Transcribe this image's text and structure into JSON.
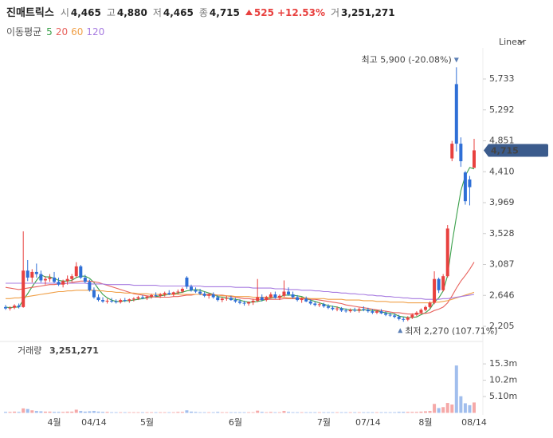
{
  "header": {
    "name": "진매트릭스",
    "items": [
      {
        "label": "시",
        "value": "4,465"
      },
      {
        "label": "고",
        "value": "4,880"
      },
      {
        "label": "저",
        "value": "4,465"
      },
      {
        "label": "종",
        "value": "4,715"
      }
    ],
    "change": "525",
    "change_pct": "+12.53%",
    "volume_label": "거",
    "volume_value": "3,251,271"
  },
  "chart_data": {
    "type": "candlestick",
    "ma_title": "이동평균",
    "scale_mode": "Linear",
    "up_color": "#e8413f",
    "down_color": "#2f6fd6",
    "annotations": {
      "high": "최고 5,900 (-20.08%)",
      "low": "최저 2,270 (107.71%)"
    },
    "ylim": [
      2080,
      6120
    ],
    "yticks": [
      {
        "value": 2205,
        "label": "2,205"
      },
      {
        "value": 2646,
        "label": "2,646"
      },
      {
        "value": 3087,
        "label": "3,087"
      },
      {
        "value": 3528,
        "label": "3,528"
      },
      {
        "value": 3969,
        "label": "3,969"
      },
      {
        "value": 4410,
        "label": "4,410"
      },
      {
        "value": 4851,
        "label": "4,851"
      },
      {
        "value": 5292,
        "label": "5,292"
      },
      {
        "value": 5733,
        "label": "5,733"
      }
    ],
    "categories": [
      null,
      null,
      null,
      null,
      null,
      null,
      null,
      null,
      null,
      null,
      null,
      "4월",
      null,
      null,
      null,
      null,
      null,
      null,
      null,
      null,
      "04/14",
      null,
      null,
      null,
      null,
      null,
      null,
      null,
      null,
      null,
      null,
      null,
      "5월",
      null,
      null,
      null,
      null,
      null,
      null,
      null,
      null,
      null,
      null,
      null,
      null,
      null,
      null,
      null,
      null,
      null,
      null,
      null,
      "6월",
      null,
      null,
      null,
      null,
      null,
      null,
      null,
      null,
      null,
      null,
      null,
      null,
      null,
      null,
      null,
      null,
      null,
      null,
      null,
      "7월",
      null,
      null,
      null,
      null,
      null,
      null,
      null,
      null,
      null,
      "07/14",
      null,
      null,
      null,
      null,
      null,
      null,
      null,
      null,
      null,
      null,
      null,
      null,
      "8월",
      null,
      null,
      null,
      null,
      null,
      null,
      null,
      null,
      null,
      null,
      "08/14"
    ],
    "ohlc": [
      [
        2480,
        2510,
        2440,
        2460
      ],
      [
        2460,
        2490,
        2430,
        2470
      ],
      [
        2470,
        2520,
        2450,
        2500
      ],
      [
        2500,
        2530,
        2460,
        2480
      ],
      [
        2480,
        3560,
        2470,
        3000
      ],
      [
        3000,
        3150,
        2850,
        2900
      ],
      [
        2900,
        3020,
        2830,
        2980
      ],
      [
        2980,
        3100,
        2900,
        2950
      ],
      [
        2950,
        3000,
        2830,
        2860
      ],
      [
        2860,
        2920,
        2800,
        2880
      ],
      [
        2880,
        2950,
        2840,
        2900
      ],
      [
        2900,
        2980,
        2820,
        2840
      ],
      [
        2840,
        2900,
        2780,
        2800
      ],
      [
        2800,
        2870,
        2760,
        2850
      ],
      [
        2850,
        2930,
        2800,
        2880
      ],
      [
        2880,
        2950,
        2840,
        2920
      ],
      [
        2920,
        3120,
        2900,
        3060
      ],
      [
        3060,
        3080,
        2880,
        2900
      ],
      [
        2900,
        2940,
        2820,
        2840
      ],
      [
        2840,
        2870,
        2700,
        2720
      ],
      [
        2720,
        2760,
        2600,
        2620
      ],
      [
        2620,
        2660,
        2560,
        2580
      ],
      [
        2580,
        2620,
        2540,
        2560
      ],
      [
        2560,
        2600,
        2530,
        2570
      ],
      [
        2570,
        2610,
        2540,
        2560
      ],
      [
        2560,
        2590,
        2530,
        2550
      ],
      [
        2550,
        2600,
        2530,
        2580
      ],
      [
        2580,
        2610,
        2550,
        2570
      ],
      [
        2570,
        2600,
        2540,
        2590
      ],
      [
        2590,
        2620,
        2560,
        2600
      ],
      [
        2600,
        2640,
        2580,
        2620
      ],
      [
        2620,
        2650,
        2590,
        2610
      ],
      [
        2610,
        2640,
        2580,
        2630
      ],
      [
        2630,
        2670,
        2600,
        2650
      ],
      [
        2650,
        2690,
        2620,
        2640
      ],
      [
        2640,
        2680,
        2610,
        2660
      ],
      [
        2660,
        2700,
        2630,
        2680
      ],
      [
        2680,
        2720,
        2650,
        2660
      ],
      [
        2660,
        2700,
        2630,
        2690
      ],
      [
        2690,
        2730,
        2660,
        2700
      ],
      [
        2700,
        2760,
        2680,
        2740
      ],
      [
        2900,
        2920,
        2740,
        2770
      ],
      [
        2770,
        2800,
        2700,
        2720
      ],
      [
        2720,
        2760,
        2680,
        2700
      ],
      [
        2700,
        2740,
        2650,
        2670
      ],
      [
        2670,
        2700,
        2620,
        2640
      ],
      [
        2640,
        2680,
        2600,
        2660
      ],
      [
        2660,
        2690,
        2600,
        2620
      ],
      [
        2620,
        2650,
        2560,
        2580
      ],
      [
        2580,
        2620,
        2550,
        2600
      ],
      [
        2600,
        2640,
        2570,
        2610
      ],
      [
        2610,
        2640,
        2570,
        2580
      ],
      [
        2580,
        2610,
        2540,
        2560
      ],
      [
        2560,
        2590,
        2520,
        2540
      ],
      [
        2540,
        2570,
        2500,
        2530
      ],
      [
        2530,
        2560,
        2500,
        2550
      ],
      [
        2550,
        2600,
        2510,
        2570
      ],
      [
        2570,
        2880,
        2550,
        2620
      ],
      [
        2620,
        2660,
        2560,
        2580
      ],
      [
        2580,
        2640,
        2560,
        2620
      ],
      [
        2620,
        2690,
        2600,
        2660
      ],
      [
        2660,
        2700,
        2600,
        2610
      ],
      [
        2610,
        2660,
        2580,
        2640
      ],
      [
        2640,
        2860,
        2620,
        2700
      ],
      [
        2700,
        2760,
        2640,
        2660
      ],
      [
        2660,
        2700,
        2600,
        2620
      ],
      [
        2620,
        2650,
        2560,
        2580
      ],
      [
        2580,
        2620,
        2540,
        2600
      ],
      [
        2600,
        2630,
        2550,
        2560
      ],
      [
        2560,
        2590,
        2510,
        2530
      ],
      [
        2530,
        2560,
        2490,
        2510
      ],
      [
        2510,
        2550,
        2480,
        2520
      ],
      [
        2520,
        2540,
        2470,
        2490
      ],
      [
        2490,
        2520,
        2450,
        2470
      ],
      [
        2470,
        2500,
        2430,
        2450
      ],
      [
        2450,
        2490,
        2420,
        2460
      ],
      [
        2460,
        2480,
        2410,
        2430
      ],
      [
        2430,
        2460,
        2400,
        2420
      ],
      [
        2420,
        2460,
        2400,
        2440
      ],
      [
        2440,
        2470,
        2410,
        2430
      ],
      [
        2430,
        2470,
        2400,
        2450
      ],
      [
        2450,
        2490,
        2420,
        2440
      ],
      [
        2440,
        2470,
        2400,
        2420
      ],
      [
        2420,
        2450,
        2380,
        2400
      ],
      [
        2400,
        2440,
        2380,
        2420
      ],
      [
        2420,
        2450,
        2380,
        2390
      ],
      [
        2390,
        2420,
        2350,
        2370
      ],
      [
        2370,
        2400,
        2340,
        2360
      ],
      [
        2360,
        2390,
        2320,
        2340
      ],
      [
        2340,
        2370,
        2290,
        2310
      ],
      [
        2310,
        2340,
        2270,
        2300
      ],
      [
        2300,
        2350,
        2280,
        2330
      ],
      [
        2330,
        2390,
        2310,
        2370
      ],
      [
        2370,
        2420,
        2350,
        2400
      ],
      [
        2400,
        2460,
        2380,
        2440
      ],
      [
        2440,
        2500,
        2420,
        2480
      ],
      [
        2480,
        2560,
        2460,
        2540
      ],
      [
        2540,
        2990,
        2520,
        2880
      ],
      [
        2880,
        2900,
        2680,
        2720
      ],
      [
        2720,
        2950,
        2700,
        2920
      ],
      [
        2920,
        3650,
        2900,
        3600
      ],
      [
        4600,
        4850,
        4560,
        4810
      ],
      [
        5660,
        5900,
        4700,
        4810
      ],
      [
        4810,
        4900,
        4480,
        4560
      ],
      [
        4400,
        4420,
        3940,
        3990
      ],
      [
        4300,
        4350,
        3930,
        4190
      ],
      [
        4465,
        4880,
        4465,
        4715
      ]
    ],
    "series": [
      {
        "name": "5",
        "color": "#3aa04a",
        "values": [
          2480,
          2470,
          2480,
          2480,
          2580,
          2670,
          2770,
          2860,
          2940,
          2910,
          2910,
          2890,
          2860,
          2850,
          2850,
          2860,
          2900,
          2920,
          2920,
          2890,
          2830,
          2740,
          2660,
          2610,
          2580,
          2560,
          2560,
          2570,
          2570,
          2580,
          2590,
          2600,
          2610,
          2620,
          2630,
          2640,
          2650,
          2660,
          2670,
          2680,
          2690,
          2710,
          2720,
          2730,
          2720,
          2700,
          2680,
          2660,
          2630,
          2620,
          2610,
          2600,
          2590,
          2580,
          2560,
          2550,
          2550,
          2560,
          2570,
          2590,
          2610,
          2620,
          2620,
          2650,
          2650,
          2650,
          2640,
          2630,
          2600,
          2580,
          2560,
          2540,
          2520,
          2500,
          2490,
          2480,
          2460,
          2450,
          2440,
          2440,
          2430,
          2440,
          2440,
          2430,
          2430,
          2410,
          2400,
          2390,
          2380,
          2350,
          2340,
          2330,
          2330,
          2340,
          2370,
          2400,
          2450,
          2550,
          2610,
          2710,
          2930,
          3390,
          3770,
          4140,
          4350,
          4470,
          4450
        ]
      },
      {
        "name": "20",
        "color": "#e8615c",
        "values": [
          2760,
          2750,
          2740,
          2730,
          2740,
          2750,
          2760,
          2770,
          2780,
          2790,
          2800,
          2800,
          2810,
          2810,
          2820,
          2830,
          2840,
          2850,
          2850,
          2850,
          2840,
          2830,
          2810,
          2790,
          2770,
          2750,
          2730,
          2710,
          2690,
          2670,
          2660,
          2650,
          2640,
          2630,
          2620,
          2620,
          2620,
          2620,
          2630,
          2630,
          2640,
          2650,
          2650,
          2660,
          2660,
          2660,
          2660,
          2660,
          2650,
          2650,
          2640,
          2630,
          2620,
          2610,
          2600,
          2600,
          2590,
          2590,
          2590,
          2590,
          2590,
          2590,
          2590,
          2600,
          2600,
          2600,
          2600,
          2600,
          2600,
          2590,
          2590,
          2580,
          2570,
          2560,
          2550,
          2540,
          2530,
          2510,
          2500,
          2490,
          2480,
          2470,
          2460,
          2450,
          2440,
          2430,
          2420,
          2410,
          2400,
          2400,
          2390,
          2380,
          2380,
          2380,
          2390,
          2390,
          2400,
          2430,
          2450,
          2480,
          2540,
          2640,
          2750,
          2850,
          2930,
          3020,
          3120
        ]
      },
      {
        "name": "60",
        "color": "#f0a048",
        "values": [
          2600,
          2600,
          2610,
          2610,
          2620,
          2630,
          2640,
          2650,
          2660,
          2670,
          2680,
          2690,
          2700,
          2700,
          2710,
          2710,
          2720,
          2720,
          2720,
          2720,
          2720,
          2710,
          2710,
          2700,
          2700,
          2690,
          2690,
          2680,
          2680,
          2680,
          2670,
          2670,
          2670,
          2660,
          2660,
          2660,
          2660,
          2660,
          2660,
          2660,
          2660,
          2660,
          2660,
          2660,
          2660,
          2650,
          2650,
          2650,
          2650,
          2640,
          2640,
          2640,
          2630,
          2630,
          2630,
          2630,
          2620,
          2620,
          2620,
          2620,
          2620,
          2620,
          2620,
          2620,
          2610,
          2610,
          2610,
          2610,
          2610,
          2600,
          2600,
          2600,
          2600,
          2590,
          2590,
          2590,
          2590,
          2580,
          2580,
          2580,
          2580,
          2570,
          2570,
          2570,
          2560,
          2560,
          2560,
          2550,
          2550,
          2550,
          2550,
          2540,
          2540,
          2540,
          2540,
          2540,
          2540,
          2550,
          2550,
          2560,
          2570,
          2590,
          2610,
          2630,
          2650,
          2670,
          2690
        ]
      },
      {
        "name": "120",
        "color": "#a77be0",
        "values": [
          2820,
          2820,
          2820,
          2820,
          2820,
          2820,
          2820,
          2820,
          2820,
          2820,
          2820,
          2820,
          2820,
          2820,
          2820,
          2820,
          2820,
          2820,
          2820,
          2810,
          2810,
          2810,
          2810,
          2800,
          2800,
          2800,
          2800,
          2800,
          2800,
          2790,
          2790,
          2790,
          2790,
          2790,
          2790,
          2780,
          2780,
          2780,
          2780,
          2780,
          2780,
          2780,
          2780,
          2780,
          2780,
          2770,
          2770,
          2770,
          2770,
          2770,
          2770,
          2770,
          2760,
          2760,
          2760,
          2760,
          2750,
          2750,
          2750,
          2750,
          2750,
          2740,
          2740,
          2740,
          2730,
          2730,
          2730,
          2720,
          2720,
          2720,
          2710,
          2710,
          2700,
          2700,
          2690,
          2690,
          2680,
          2680,
          2670,
          2670,
          2660,
          2660,
          2650,
          2650,
          2640,
          2640,
          2630,
          2630,
          2620,
          2620,
          2610,
          2610,
          2600,
          2600,
          2600,
          2590,
          2590,
          2590,
          2590,
          2600,
          2600,
          2610,
          2620,
          2630,
          2640,
          2650,
          2660
        ]
      }
    ],
    "volume_title": "거래량",
    "vlim": [
      0,
      21.8
    ],
    "vticks": [
      {
        "value": 5.1,
        "label": "5.10m"
      },
      {
        "value": 10.2,
        "label": "10.2m"
      },
      {
        "value": 15.3,
        "label": "15.3m"
      }
    ],
    "volume": [
      0.3,
      0.3,
      0.4,
      0.3,
      1.4,
      1.2,
      0.8,
      0.6,
      0.5,
      0.4,
      0.4,
      0.3,
      0.3,
      0.3,
      0.4,
      0.4,
      1.0,
      0.6,
      0.4,
      0.5,
      0.6,
      0.4,
      0.3,
      0.3,
      0.2,
      0.2,
      0.2,
      0.2,
      0.2,
      0.2,
      0.2,
      0.2,
      0.2,
      0.2,
      0.2,
      0.2,
      0.2,
      0.2,
      0.2,
      0.3,
      0.3,
      0.8,
      0.4,
      0.3,
      0.2,
      0.2,
      0.2,
      0.2,
      0.3,
      0.2,
      0.2,
      0.2,
      0.2,
      0.2,
      0.2,
      0.2,
      0.2,
      0.7,
      0.3,
      0.2,
      0.3,
      0.2,
      0.2,
      0.6,
      0.3,
      0.2,
      0.2,
      0.2,
      0.2,
      0.2,
      0.2,
      0.2,
      0.2,
      0.2,
      0.2,
      0.2,
      0.2,
      0.2,
      0.2,
      0.2,
      0.2,
      0.2,
      0.2,
      0.2,
      0.2,
      0.2,
      0.2,
      0.2,
      0.2,
      0.3,
      0.3,
      0.3,
      0.3,
      0.3,
      0.4,
      0.5,
      0.6,
      2.8,
      1.5,
      1.8,
      3.1,
      2.6,
      14.8,
      5.2,
      3.0,
      2.4,
      3.251271
    ]
  }
}
